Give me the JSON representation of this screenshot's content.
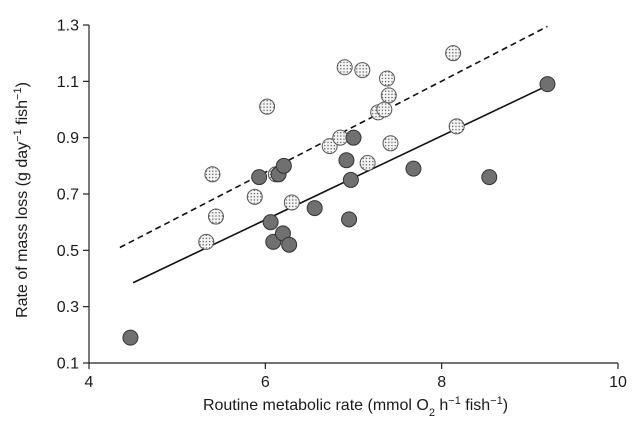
{
  "chart_data": {
    "type": "scatter",
    "title": "",
    "xlabel": {
      "parts": [
        {
          "text": "Routine metabolic rate (mmol O",
          "style": "normal"
        },
        {
          "text": "2",
          "style": "sub"
        },
        {
          "text": " h",
          "style": "normal"
        },
        {
          "text": "−1",
          "style": "sup"
        },
        {
          "text": " fish",
          "style": "normal"
        },
        {
          "text": "−1",
          "style": "sup"
        },
        {
          "text": ")",
          "style": "normal"
        }
      ]
    },
    "ylabel": {
      "parts": [
        {
          "text": "Rate of mass loss (g day",
          "style": "normal"
        },
        {
          "text": "−1",
          "style": "sup"
        },
        {
          "text": " fish",
          "style": "normal"
        },
        {
          "text": "−1",
          "style": "sup"
        },
        {
          "text": ")",
          "style": "normal"
        }
      ]
    },
    "xlim": [
      4,
      10
    ],
    "ylim": [
      0.1,
      1.3
    ],
    "xticks": [
      "4",
      "6",
      "8",
      "10"
    ],
    "yticks": [
      "0.1",
      "0.3",
      "0.5",
      "0.7",
      "0.9",
      "1.1",
      "1.3"
    ],
    "grid": false,
    "legend": null,
    "series": [
      {
        "marker": "dotted-circle",
        "fill": "#f4f4f4",
        "points": [
          [
            5.33,
            0.53
          ],
          [
            5.4,
            0.77
          ],
          [
            5.44,
            0.62
          ],
          [
            5.88,
            0.69
          ],
          [
            6.02,
            1.01
          ],
          [
            6.12,
            0.77
          ],
          [
            6.3,
            0.67
          ],
          [
            6.73,
            0.87
          ],
          [
            6.85,
            0.9
          ],
          [
            6.9,
            1.15
          ],
          [
            7.1,
            1.14
          ],
          [
            7.16,
            0.81
          ],
          [
            7.28,
            0.99
          ],
          [
            7.35,
            1.0
          ],
          [
            7.38,
            1.11
          ],
          [
            7.4,
            1.05
          ],
          [
            7.42,
            0.88
          ],
          [
            8.13,
            1.2
          ],
          [
            8.17,
            0.94
          ]
        ]
      },
      {
        "marker": "grey-circle",
        "fill": "#707070",
        "points": [
          [
            4.47,
            0.19
          ],
          [
            5.93,
            0.76
          ],
          [
            6.06,
            0.6
          ],
          [
            6.09,
            0.53
          ],
          [
            6.15,
            0.77
          ],
          [
            6.2,
            0.56
          ],
          [
            6.21,
            0.8
          ],
          [
            6.27,
            0.52
          ],
          [
            6.56,
            0.65
          ],
          [
            6.92,
            0.82
          ],
          [
            6.95,
            0.61
          ],
          [
            6.97,
            0.75
          ],
          [
            7.0,
            0.9
          ],
          [
            7.68,
            0.79
          ],
          [
            8.54,
            0.76
          ],
          [
            9.2,
            1.09
          ]
        ]
      }
    ],
    "fit_lines": [
      {
        "style": "dashed",
        "x": [
          4.35,
          9.2
        ],
        "y": [
          0.51,
          1.295
        ]
      },
      {
        "style": "solid",
        "x": [
          4.5,
          9.2
        ],
        "y": [
          0.385,
          1.085
        ]
      }
    ]
  }
}
